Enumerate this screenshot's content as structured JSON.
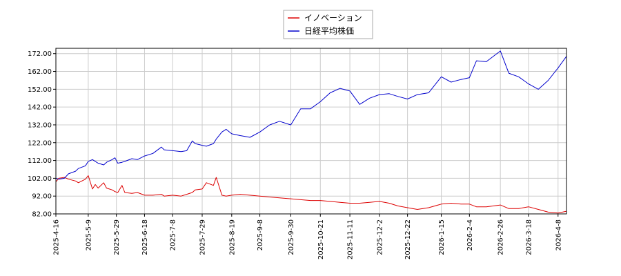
{
  "chart_data": {
    "type": "line",
    "title": "",
    "xlabel": "",
    "ylabel": "",
    "ylim": [
      82,
      175
    ],
    "yticks": [
      "82.00",
      "92.00",
      "102.00",
      "112.00",
      "122.00",
      "132.00",
      "142.00",
      "152.00",
      "162.00",
      "172.00"
    ],
    "ytick_values": [
      82,
      92,
      102,
      112,
      122,
      132,
      142,
      152,
      162,
      172
    ],
    "xticks": [
      "2025-4-16",
      "2025-5-9",
      "2025-5-29",
      "2025-6-18",
      "2025-7-8",
      "2025-7-29",
      "2025-8-19",
      "2025-9-8",
      "2025-9-30",
      "2025-10-21",
      "2025-11-11",
      "2025-12-2",
      "2025-12-22",
      "2026-1-15",
      "2026-2-4",
      "2026-2-26",
      "2026-3-18",
      "2026-4-8"
    ],
    "x_start": "2025-4-16",
    "x_end": "2026-4-14",
    "grid": true,
    "legend_position": "top-center",
    "series": [
      {
        "name": "イノベーション",
        "color": "#dd0000",
        "points": [
          [
            "2025-4-16",
            100.0
          ],
          [
            "2025-4-18",
            102.0
          ],
          [
            "2025-4-22",
            102.5
          ],
          [
            "2025-4-25",
            101.5
          ],
          [
            "2025-4-30",
            100.5
          ],
          [
            "2025-5-2",
            99.5
          ],
          [
            "2025-5-7",
            101.5
          ],
          [
            "2025-5-9",
            103.5
          ],
          [
            "2025-5-12",
            96.0
          ],
          [
            "2025-5-14",
            98.5
          ],
          [
            "2025-5-16",
            96.5
          ],
          [
            "2025-5-20",
            99.5
          ],
          [
            "2025-5-22",
            96.5
          ],
          [
            "2025-5-26",
            95.5
          ],
          [
            "2025-5-28",
            94.5
          ],
          [
            "2025-5-30",
            94.0
          ],
          [
            "2025-6-2",
            98.0
          ],
          [
            "2025-6-4",
            94.0
          ],
          [
            "2025-6-9",
            93.5
          ],
          [
            "2025-6-13",
            94.0
          ],
          [
            "2025-6-18",
            92.5
          ],
          [
            "2025-6-24",
            92.5
          ],
          [
            "2025-6-30",
            93.0
          ],
          [
            "2025-7-2",
            92.0
          ],
          [
            "2025-7-8",
            92.5
          ],
          [
            "2025-7-14",
            92.0
          ],
          [
            "2025-7-18",
            93.0
          ],
          [
            "2025-7-22",
            94.0
          ],
          [
            "2025-7-24",
            95.5
          ],
          [
            "2025-7-29",
            96.0
          ],
          [
            "2025-8-1",
            99.5
          ],
          [
            "2025-8-6",
            98.0
          ],
          [
            "2025-8-8",
            102.5
          ],
          [
            "2025-8-12",
            92.5
          ],
          [
            "2025-8-15",
            92.0
          ],
          [
            "2025-8-19",
            92.5
          ],
          [
            "2025-8-25",
            93.0
          ],
          [
            "2025-9-1",
            92.5
          ],
          [
            "2025-9-8",
            92.0
          ],
          [
            "2025-9-15",
            91.5
          ],
          [
            "2025-9-22",
            91.0
          ],
          [
            "2025-9-30",
            90.5
          ],
          [
            "2025-10-7",
            90.0
          ],
          [
            "2025-10-14",
            89.5
          ],
          [
            "2025-10-21",
            89.5
          ],
          [
            "2025-10-28",
            89.0
          ],
          [
            "2025-11-4",
            88.5
          ],
          [
            "2025-11-11",
            88.0
          ],
          [
            "2025-11-18",
            88.0
          ],
          [
            "2025-11-25",
            88.5
          ],
          [
            "2025-12-2",
            89.0
          ],
          [
            "2025-12-9",
            88.0
          ],
          [
            "2025-12-15",
            86.5
          ],
          [
            "2025-12-22",
            85.5
          ],
          [
            "2025-12-29",
            84.5
          ],
          [
            "2026-1-6",
            85.5
          ],
          [
            "2026-1-15",
            87.5
          ],
          [
            "2026-1-22",
            88.0
          ],
          [
            "2026-1-29",
            87.5
          ],
          [
            "2026-2-4",
            87.5
          ],
          [
            "2026-2-9",
            86.0
          ],
          [
            "2026-2-16",
            86.0
          ],
          [
            "2026-2-26",
            87.0
          ],
          [
            "2026-3-4",
            85.0
          ],
          [
            "2026-3-11",
            85.0
          ],
          [
            "2026-3-18",
            86.0
          ],
          [
            "2026-3-25",
            84.5
          ],
          [
            "2026-4-1",
            83.0
          ],
          [
            "2026-4-8",
            82.5
          ],
          [
            "2026-4-14",
            83.5
          ]
        ]
      },
      {
        "name": "日経平均株価",
        "color": "#0000cc",
        "points": [
          [
            "2025-4-16",
            102.0
          ],
          [
            "2025-4-18",
            101.5
          ],
          [
            "2025-4-22",
            102.0
          ],
          [
            "2025-4-25",
            104.5
          ],
          [
            "2025-4-30",
            106.0
          ],
          [
            "2025-5-2",
            107.5
          ],
          [
            "2025-5-7",
            109.0
          ],
          [
            "2025-5-9",
            111.5
          ],
          [
            "2025-5-12",
            112.5
          ],
          [
            "2025-5-14",
            111.5
          ],
          [
            "2025-5-16",
            110.5
          ],
          [
            "2025-5-20",
            109.5
          ],
          [
            "2025-5-22",
            111.0
          ],
          [
            "2025-5-26",
            112.5
          ],
          [
            "2025-5-28",
            113.5
          ],
          [
            "2025-5-30",
            110.5
          ],
          [
            "2025-6-2",
            111.0
          ],
          [
            "2025-6-4",
            111.5
          ],
          [
            "2025-6-9",
            113.0
          ],
          [
            "2025-6-13",
            112.5
          ],
          [
            "2025-6-18",
            114.5
          ],
          [
            "2025-6-24",
            116.0
          ],
          [
            "2025-6-30",
            119.5
          ],
          [
            "2025-7-2",
            118.0
          ],
          [
            "2025-7-8",
            117.5
          ],
          [
            "2025-7-14",
            117.0
          ],
          [
            "2025-7-18",
            117.5
          ],
          [
            "2025-7-22",
            123.0
          ],
          [
            "2025-7-24",
            121.5
          ],
          [
            "2025-7-29",
            120.5
          ],
          [
            "2025-8-1",
            120.0
          ],
          [
            "2025-8-6",
            121.5
          ],
          [
            "2025-8-8",
            124.0
          ],
          [
            "2025-8-12",
            128.0
          ],
          [
            "2025-8-15",
            129.5
          ],
          [
            "2025-8-19",
            127.0
          ],
          [
            "2025-8-25",
            126.0
          ],
          [
            "2025-9-1",
            125.0
          ],
          [
            "2025-9-8",
            128.0
          ],
          [
            "2025-9-15",
            132.0
          ],
          [
            "2025-9-22",
            134.0
          ],
          [
            "2025-9-30",
            132.0
          ],
          [
            "2025-10-7",
            141.0
          ],
          [
            "2025-10-14",
            141.0
          ],
          [
            "2025-10-21",
            145.0
          ],
          [
            "2025-10-28",
            150.0
          ],
          [
            "2025-11-4",
            152.5
          ],
          [
            "2025-11-11",
            151.0
          ],
          [
            "2025-11-18",
            143.5
          ],
          [
            "2025-11-25",
            147.0
          ],
          [
            "2025-12-2",
            149.0
          ],
          [
            "2025-12-9",
            149.5
          ],
          [
            "2025-12-15",
            148.0
          ],
          [
            "2025-12-22",
            146.5
          ],
          [
            "2025-12-29",
            149.0
          ],
          [
            "2026-1-6",
            150.0
          ],
          [
            "2026-1-15",
            159.0
          ],
          [
            "2026-1-22",
            156.0
          ],
          [
            "2026-1-29",
            157.5
          ],
          [
            "2026-2-4",
            158.5
          ],
          [
            "2026-2-9",
            168.0
          ],
          [
            "2026-2-16",
            167.5
          ],
          [
            "2026-2-26",
            173.5
          ],
          [
            "2026-3-4",
            161.0
          ],
          [
            "2026-3-11",
            159.0
          ],
          [
            "2026-3-18",
            155.0
          ],
          [
            "2026-3-25",
            152.0
          ],
          [
            "2026-4-1",
            157.0
          ],
          [
            "2026-4-8",
            164.0
          ],
          [
            "2026-4-14",
            170.5
          ]
        ]
      }
    ]
  }
}
